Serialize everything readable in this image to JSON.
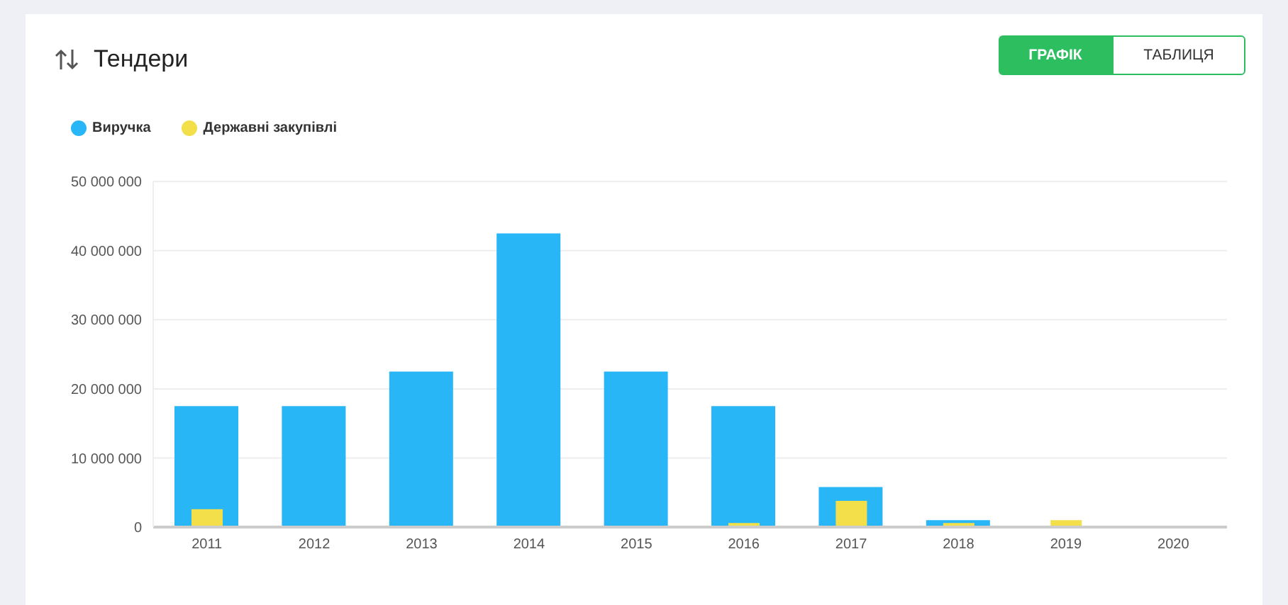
{
  "chart_data": {
    "type": "bar",
    "title": "Тендери",
    "annotations": [
      "ГРАФІК",
      "ТАБЛИЦЯ"
    ],
    "categories": [
      "2011",
      "2012",
      "2013",
      "2014",
      "2015",
      "2016",
      "2017",
      "2018",
      "2019",
      "2020"
    ],
    "series": [
      {
        "name": "Виручка",
        "color": "#29b6f6",
        "values": [
          17500000,
          17500000,
          22500000,
          42500000,
          22500000,
          17500000,
          5800000,
          1000000,
          0,
          0
        ]
      },
      {
        "name": "Державні закупівлі",
        "color": "#f2df4a",
        "values": [
          2600000,
          0,
          0,
          0,
          0,
          600000,
          3800000,
          600000,
          1000000,
          0
        ]
      }
    ],
    "ylim": [
      0,
      50000000
    ],
    "yticks": [
      0,
      {
        "value": 10000000,
        "label": "10 000 000"
      },
      {
        "value": 20000000,
        "label": "20 000 000"
      },
      {
        "value": 30000000,
        "label": "30 000 000"
      },
      {
        "value": 40000000,
        "label": "40 000 000"
      },
      {
        "value": 50000000,
        "label": "50 000 000"
      }
    ],
    "grid": "y",
    "legend": "top left"
  }
}
